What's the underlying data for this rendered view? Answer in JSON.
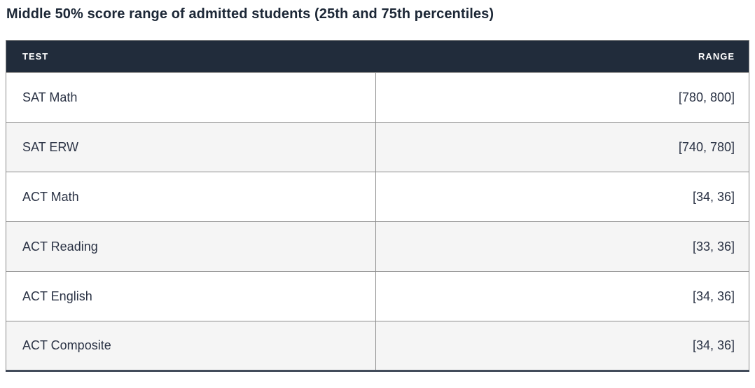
{
  "page": {
    "title": "Middle 50% score range of admitted students (25th and 75th percentiles)"
  },
  "table": {
    "columns": [
      "TEST",
      "RANGE"
    ],
    "rows": [
      {
        "test": "SAT Math",
        "range": "[780, 800]"
      },
      {
        "test": "SAT ERW",
        "range": "[740, 780]"
      },
      {
        "test": "ACT Math",
        "range": "[34, 36]"
      },
      {
        "test": "ACT Reading",
        "range": "[33, 36]"
      },
      {
        "test": "ACT English",
        "range": "[34, 36]"
      },
      {
        "test": "ACT Composite",
        "range": "[34, 36]"
      }
    ],
    "colors": {
      "header_bg": "#212c3b",
      "header_text": "#ffffff",
      "row_bg": "#ffffff",
      "row_alt_bg": "#f5f5f5",
      "border": "#8c8c8c",
      "bottom_border": "#434c5b",
      "text": "#2b3345",
      "title_color": "#1c2736"
    }
  }
}
